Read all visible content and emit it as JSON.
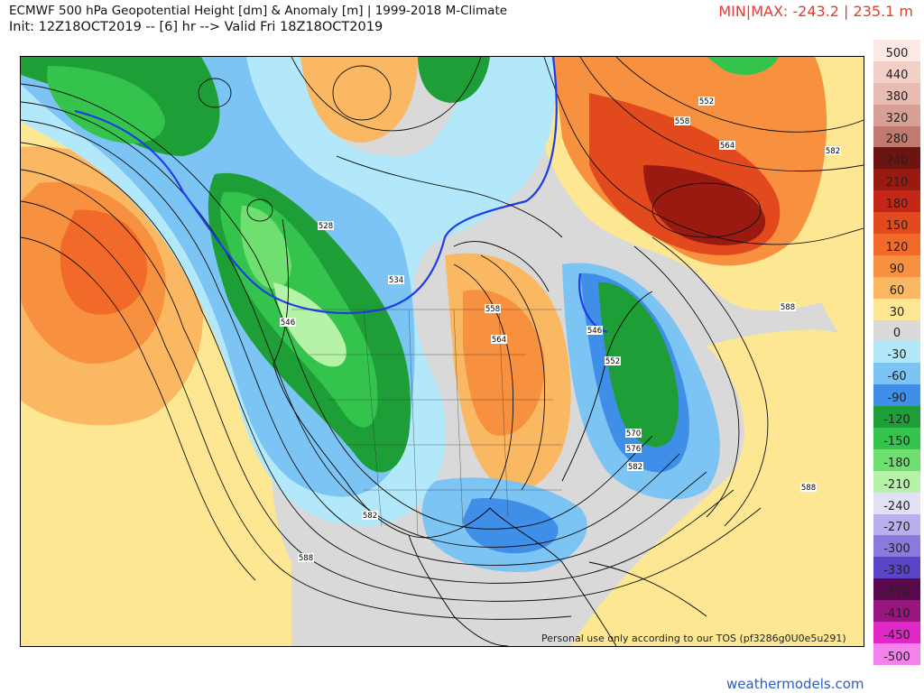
{
  "header": {
    "title": "ECMWF 500 hPa Geopotential Height [dm] & Anomaly [m] | 1999-2018 M-Climate",
    "init": "Init: 12Z18OCT2019 -- [6] hr --> Valid Fri 18Z18OCT2019",
    "minmax": "MIN|MAX: -243.2 | 235.1 m"
  },
  "legend": {
    "entries": [
      {
        "label": "500",
        "color": "#fce8e4"
      },
      {
        "label": "440",
        "color": "#f2d0c8"
      },
      {
        "label": "380",
        "color": "#e8bcb2"
      },
      {
        "label": "320",
        "color": "#d6a096"
      },
      {
        "label": "280",
        "color": "#c07a70"
      },
      {
        "label": "240",
        "color": "#6e1410"
      },
      {
        "label": "210",
        "color": "#9a1a12"
      },
      {
        "label": "180",
        "color": "#c42716"
      },
      {
        "label": "150",
        "color": "#e24a1e"
      },
      {
        "label": "120",
        "color": "#f26a2a"
      },
      {
        "label": "90",
        "color": "#f7913f"
      },
      {
        "label": "60",
        "color": "#fab862"
      },
      {
        "label": "30",
        "color": "#fde792"
      },
      {
        "label": "0",
        "color": "#d9d9d9"
      },
      {
        "label": "-30",
        "color": "#b2e8fa"
      },
      {
        "label": "-60",
        "color": "#7cc4f4"
      },
      {
        "label": "-90",
        "color": "#3f8ee8"
      },
      {
        "label": "-120",
        "color": "#1e9e36"
      },
      {
        "label": "-150",
        "color": "#34c34c"
      },
      {
        "label": "-180",
        "color": "#6fdf6f"
      },
      {
        "label": "-210",
        "color": "#b6f2a8"
      },
      {
        "label": "-240",
        "color": "#e2e0f4"
      },
      {
        "label": "-270",
        "color": "#b8b0ec"
      },
      {
        "label": "-300",
        "color": "#8a7ade"
      },
      {
        "label": "-330",
        "color": "#5a44c8"
      },
      {
        "label": "-370",
        "color": "#5a0a4c"
      },
      {
        "label": "-410",
        "color": "#9a1480"
      },
      {
        "label": "-450",
        "color": "#e028c8"
      },
      {
        "label": "-500",
        "color": "#f582ec"
      }
    ]
  },
  "contour_labels": [
    "552",
    "558",
    "564",
    "582",
    "528",
    "534",
    "546",
    "558",
    "564",
    "546",
    "552",
    "570",
    "576",
    "582",
    "588",
    "588",
    "582",
    "588"
  ],
  "footer": {
    "tos": "Personal use only according to our TOS (pf3286g0U0e5u291)",
    "brand": "weathermodels.com"
  }
}
